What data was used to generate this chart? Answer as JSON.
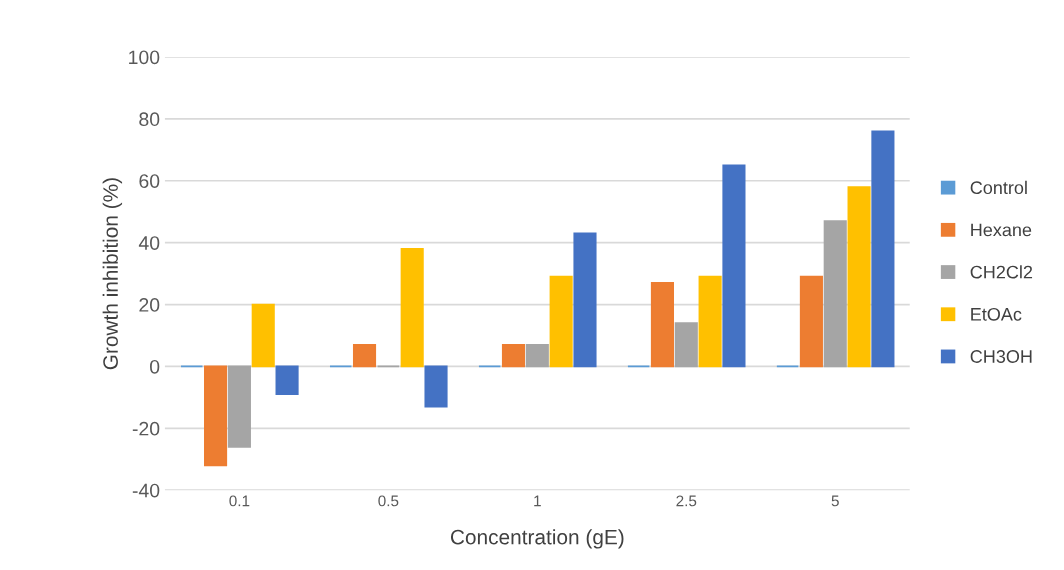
{
  "chart_data": {
    "type": "bar",
    "xlabel": "Concentration (gE)",
    "ylabel": "Growth inhibition (%)",
    "categories": [
      "0.1",
      "0.5",
      "1",
      "2.5",
      "5"
    ],
    "series": [
      {
        "name": "Control",
        "color": "#5b9bd5",
        "values": [
          0,
          0,
          0,
          0,
          0
        ]
      },
      {
        "name": "Hexane",
        "color": "#ed7d31",
        "values": [
          -32,
          7,
          7,
          27,
          29
        ]
      },
      {
        "name": "CH2Cl2",
        "color": "#a5a5a5",
        "values": [
          -26,
          0,
          7,
          14,
          47
        ]
      },
      {
        "name": "EtOAc",
        "color": "#ffc000",
        "values": [
          20,
          38,
          29,
          29,
          58
        ]
      },
      {
        "name": "CH3OH",
        "color": "#4472c4",
        "values": [
          -9,
          -13,
          43,
          65,
          76
        ]
      }
    ],
    "ylim": [
      -40,
      100
    ],
    "yticks": [
      -40,
      -20,
      0,
      20,
      40,
      60,
      80,
      100
    ],
    "grid": "y",
    "legend": "right"
  }
}
